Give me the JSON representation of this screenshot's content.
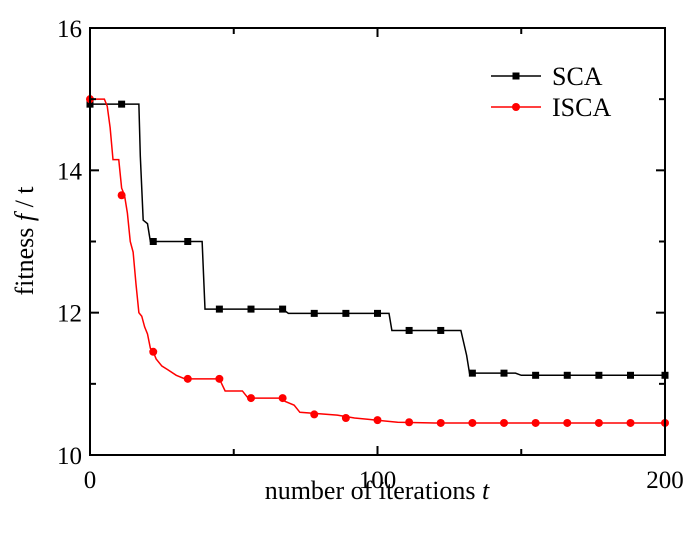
{
  "chart_data": {
    "type": "line",
    "title": "",
    "xlabel": "number of iterations",
    "xlabel_var": "t",
    "ylabel_prefix": "fitness ",
    "ylabel_var": "f",
    "ylabel_suffix": " / t",
    "xlim": [
      0,
      200
    ],
    "ylim": [
      10,
      16
    ],
    "xticks": [
      0,
      100,
      200
    ],
    "xtick_labels": [
      "0",
      "100",
      "200"
    ],
    "yticks": [
      10,
      12,
      14,
      16
    ],
    "ytick_labels": [
      "10",
      "12",
      "14",
      "16"
    ],
    "grid": false,
    "legend_position": "top-right",
    "series": [
      {
        "name": "SCA",
        "color": "#000000",
        "marker": "square",
        "step": [
          [
            0,
            14.93
          ],
          [
            17,
            14.93
          ],
          [
            17.5,
            14.2
          ],
          [
            18.5,
            13.3
          ],
          [
            20,
            13.25
          ],
          [
            21,
            13.0
          ],
          [
            39,
            13.0
          ],
          [
            40,
            12.05
          ],
          [
            67,
            12.05
          ],
          [
            69,
            11.99
          ],
          [
            104,
            11.99
          ],
          [
            105,
            11.75
          ],
          [
            129,
            11.75
          ],
          [
            131,
            11.4
          ],
          [
            132,
            11.15
          ],
          [
            148,
            11.15
          ],
          [
            150,
            11.12
          ],
          [
            200,
            11.12
          ]
        ],
        "markers": [
          [
            0,
            14.93
          ],
          [
            11,
            14.93
          ],
          [
            22,
            13.0
          ],
          [
            34,
            13.0
          ],
          [
            45,
            12.05
          ],
          [
            56,
            12.05
          ],
          [
            67,
            12.05
          ],
          [
            78,
            11.99
          ],
          [
            89,
            11.99
          ],
          [
            100,
            11.99
          ],
          [
            111,
            11.75
          ],
          [
            122,
            11.75
          ],
          [
            133,
            11.15
          ],
          [
            144,
            11.15
          ],
          [
            155,
            11.12
          ],
          [
            166,
            11.12
          ],
          [
            177,
            11.12
          ],
          [
            188,
            11.12
          ],
          [
            200,
            11.12
          ]
        ]
      },
      {
        "name": "ISCA",
        "color": "#ff0000",
        "marker": "circle",
        "step": [
          [
            0,
            15.0
          ],
          [
            5,
            15.0
          ],
          [
            6,
            14.9
          ],
          [
            7,
            14.6
          ],
          [
            8,
            14.15
          ],
          [
            10,
            14.15
          ],
          [
            11,
            13.75
          ],
          [
            12,
            13.65
          ],
          [
            13,
            13.4
          ],
          [
            14,
            13.0
          ],
          [
            15,
            12.85
          ],
          [
            16,
            12.4
          ],
          [
            17,
            12.0
          ],
          [
            18,
            11.95
          ],
          [
            19,
            11.8
          ],
          [
            20,
            11.7
          ],
          [
            21,
            11.5
          ],
          [
            22,
            11.45
          ],
          [
            23,
            11.35
          ],
          [
            25,
            11.25
          ],
          [
            27,
            11.2
          ],
          [
            30,
            11.12
          ],
          [
            33,
            11.07
          ],
          [
            45,
            11.07
          ],
          [
            47,
            10.9
          ],
          [
            53,
            10.9
          ],
          [
            55,
            10.8
          ],
          [
            66,
            10.8
          ],
          [
            68,
            10.75
          ],
          [
            71,
            10.7
          ],
          [
            73,
            10.6
          ],
          [
            86,
            10.56
          ],
          [
            92,
            10.52
          ],
          [
            97,
            10.5
          ],
          [
            107,
            10.46
          ],
          [
            120,
            10.45
          ],
          [
            200,
            10.45
          ]
        ],
        "markers": [
          [
            0,
            15.0
          ],
          [
            11,
            13.65
          ],
          [
            22,
            11.45
          ],
          [
            34,
            11.07
          ],
          [
            45,
            11.07
          ],
          [
            56,
            10.8
          ],
          [
            67,
            10.8
          ],
          [
            78,
            10.57
          ],
          [
            89,
            10.52
          ],
          [
            100,
            10.49
          ],
          [
            111,
            10.46
          ],
          [
            122,
            10.45
          ],
          [
            133,
            10.45
          ],
          [
            144,
            10.45
          ],
          [
            155,
            10.45
          ],
          [
            166,
            10.45
          ],
          [
            177,
            10.45
          ],
          [
            188,
            10.45
          ],
          [
            200,
            10.45
          ]
        ]
      }
    ]
  }
}
